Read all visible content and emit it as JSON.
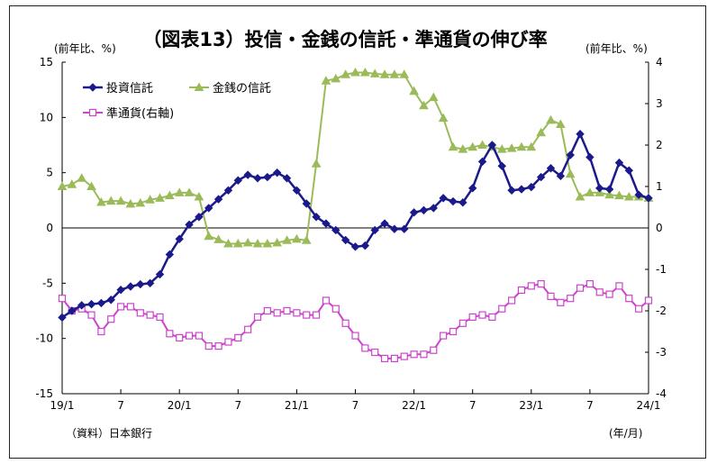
{
  "chart_data": {
    "type": "line",
    "title": "（図表13）投信・金銭の信託・準通貨の伸び率",
    "y_left_unit": "(前年比、%)",
    "y_right_unit": "(前年比、%)",
    "x_unit": "(年/月)",
    "source": "（資料）日本銀行",
    "ylim_left": [
      -15,
      15
    ],
    "ylim_right": [
      -4,
      4
    ],
    "y_left_ticks": [
      "15",
      "10",
      "5",
      "0",
      "-5",
      "-10",
      "-15"
    ],
    "y_right_ticks": [
      "4",
      "3",
      "2",
      "1",
      "0",
      "-1",
      "-2",
      "-3",
      "-4"
    ],
    "x_tick_labels": [
      "19/1",
      "7",
      "20/1",
      "7",
      "21/1",
      "7",
      "22/1",
      "7",
      "23/1",
      "7",
      "24/1"
    ],
    "x_tick_index": [
      0,
      6,
      12,
      18,
      24,
      30,
      36,
      42,
      48,
      54,
      60
    ],
    "series": [
      {
        "name": "投資信託",
        "axis": "left",
        "color": "#1a1a8c",
        "marker": "diamond",
        "values": [
          -8.1,
          -7.5,
          -7.0,
          -6.9,
          -6.8,
          -6.5,
          -5.6,
          -5.3,
          -5.1,
          -5.0,
          -4.2,
          -2.4,
          -1.0,
          0.3,
          1.0,
          1.8,
          2.6,
          3.4,
          4.3,
          4.8,
          4.5,
          4.6,
          5.0,
          4.5,
          3.4,
          2.2,
          1.0,
          0.4,
          -0.2,
          -1.1,
          -1.7,
          -1.6,
          -0.2,
          0.4,
          -0.1,
          -0.1,
          1.4,
          1.6,
          1.8,
          2.7,
          2.4,
          2.3,
          3.6,
          6.0,
          7.5,
          5.6,
          3.4,
          3.5,
          3.7,
          4.6,
          5.4,
          4.7,
          6.6,
          8.5,
          6.4,
          3.6,
          3.5,
          5.9,
          5.2,
          3.0,
          2.7
        ]
      },
      {
        "name": "金銭の信託",
        "axis": "right",
        "color": "#9bbb59",
        "marker": "triangle",
        "values": [
          1.0,
          1.05,
          1.2,
          1.0,
          0.62,
          0.65,
          0.65,
          0.58,
          0.6,
          0.68,
          0.72,
          0.78,
          0.85,
          0.85,
          0.75,
          -0.2,
          -0.28,
          -0.38,
          -0.38,
          -0.36,
          -0.38,
          -0.38,
          -0.36,
          -0.3,
          -0.27,
          -0.3,
          1.55,
          3.55,
          3.6,
          3.7,
          3.75,
          3.75,
          3.72,
          3.7,
          3.7,
          3.7,
          3.3,
          2.95,
          3.15,
          2.65,
          1.95,
          1.9,
          1.95,
          2.0,
          1.95,
          1.9,
          1.92,
          1.95,
          1.95,
          2.3,
          2.6,
          2.5,
          1.3,
          0.75,
          0.85,
          0.85,
          0.8,
          0.78,
          0.75,
          0.75,
          0.72
        ]
      },
      {
        "name": "準通貨(右軸)",
        "axis": "right",
        "color": "#cc44cc",
        "marker": "square",
        "values": [
          -1.7,
          -2.0,
          -1.95,
          -2.1,
          -2.5,
          -2.2,
          -1.9,
          -1.9,
          -2.05,
          -2.1,
          -2.15,
          -2.55,
          -2.65,
          -2.6,
          -2.6,
          -2.85,
          -2.85,
          -2.75,
          -2.65,
          -2.45,
          -2.15,
          -2.0,
          -2.05,
          -2.0,
          -2.05,
          -2.1,
          -2.1,
          -1.75,
          -1.95,
          -2.3,
          -2.6,
          -2.9,
          -3.0,
          -3.15,
          -3.15,
          -3.1,
          -3.05,
          -3.05,
          -2.95,
          -2.6,
          -2.5,
          -2.3,
          -2.15,
          -2.1,
          -2.15,
          -1.95,
          -1.75,
          -1.5,
          -1.4,
          -1.35,
          -1.65,
          -1.8,
          -1.7,
          -1.45,
          -1.35,
          -1.55,
          -1.6,
          -1.4,
          -1.7,
          -1.95,
          -1.75
        ]
      }
    ]
  }
}
